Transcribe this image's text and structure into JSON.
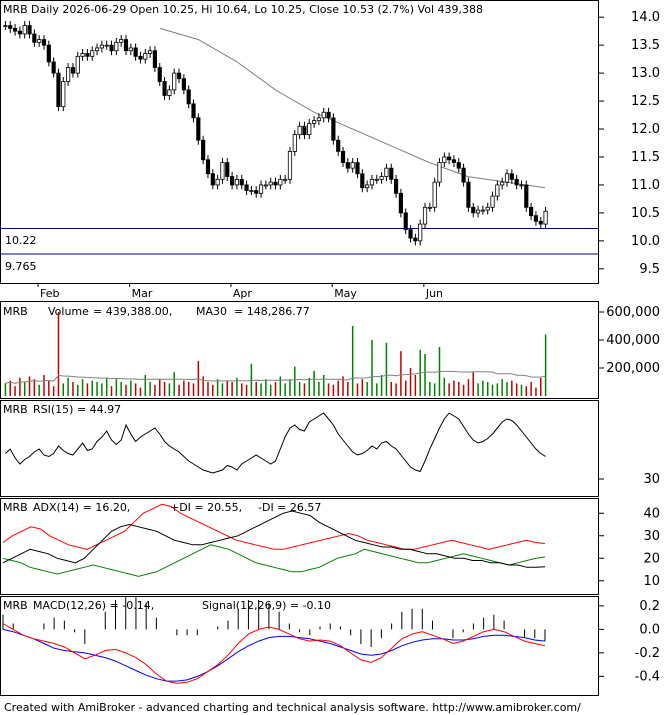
{
  "header": {
    "symbol": "MRB",
    "info": "Daily 2026-06-29 Open 10.25, Hi 10.64, Lo 10.25, Close 10.53 (2.7%) Vol 439,388"
  },
  "price_levels": [
    "10.22",
    "9.765"
  ],
  "months": [
    "Feb",
    "Mar",
    "Apr",
    "May",
    "Jun"
  ],
  "panes": {
    "price": {
      "y_ticks": [
        "14.0",
        "13.5",
        "13.0",
        "12.5",
        "12.0",
        "11.5",
        "11.0",
        "10.5",
        "10.0",
        "9.5"
      ]
    },
    "volume": {
      "symbol": "MRB",
      "label": "Volume",
      "value": "= 439,388.00,",
      "ma_label": "MA30",
      "ma_value": "= 148,286.77",
      "y_ticks": [
        "600,000",
        "400,000",
        "200,000"
      ]
    },
    "rsi": {
      "symbol": "MRB",
      "label": "RSI(15) = 44.97",
      "y_ticks": [
        "30"
      ]
    },
    "adx": {
      "symbol": "MRB",
      "label": "ADX(14) = 16.20,",
      "pdi": "+DI = 20.55,",
      "mdi": "-DI = 26.57",
      "y_ticks": [
        "40",
        "30",
        "20",
        "10"
      ]
    },
    "macd": {
      "symbol": "MRB",
      "label": "MACD(12,26) = -0.14,",
      "signal": "Signal(12,26,9) = -0.10",
      "y_ticks": [
        "0.2",
        "0.0",
        "-0.2",
        "-0.4"
      ]
    }
  },
  "footer": "Created with AmiBroker - advanced charting and technical analysis software. http://www.amibroker.com/",
  "colors": {
    "up": "#ffffff",
    "down": "#000000",
    "ma": "#808080",
    "vol_up": "#008000",
    "vol_down": "#c00000",
    "vol_ma": "#808080",
    "pdi": "#008000",
    "mdi": "#ff0000",
    "adx": "#000000",
    "macd": "#ff0000",
    "signal": "#0000ff",
    "hist": "#000000",
    "level_line": "#000080"
  },
  "chart_data": {
    "type": "line",
    "title": "MRB Daily",
    "price_ylim": [
      9.3,
      14.2
    ],
    "close": [
      13.85,
      13.8,
      13.75,
      13.7,
      13.85,
      13.7,
      13.55,
      13.6,
      13.5,
      13.2,
      13.0,
      12.4,
      12.85,
      13.1,
      13.0,
      13.3,
      13.35,
      13.3,
      13.4,
      13.45,
      13.5,
      13.5,
      13.4,
      13.55,
      13.6,
      13.4,
      13.45,
      13.3,
      13.25,
      13.35,
      13.4,
      13.1,
      12.85,
      12.6,
      12.7,
      13.0,
      12.9,
      12.7,
      12.45,
      12.2,
      11.8,
      11.45,
      11.2,
      11.0,
      11.1,
      11.4,
      11.15,
      11.0,
      11.1,
      11.0,
      10.9,
      10.9,
      10.85,
      11.0,
      11.0,
      11.05,
      11.0,
      11.1,
      11.1,
      11.6,
      11.9,
      12.05,
      11.9,
      12.1,
      12.15,
      12.2,
      12.3,
      12.2,
      11.8,
      11.6,
      11.4,
      11.3,
      11.4,
      11.2,
      10.95,
      11.0,
      11.1,
      11.1,
      11.15,
      11.3,
      11.1,
      10.85,
      10.5,
      10.2,
      10.05,
      10.0,
      10.3,
      10.6,
      10.6,
      11.05,
      11.4,
      11.5,
      11.45,
      11.4,
      11.3,
      11.05,
      10.6,
      10.5,
      10.55,
      10.55,
      10.6,
      10.8,
      11.0,
      11.05,
      11.2,
      11.1,
      11.0,
      11.0,
      10.6,
      10.45,
      10.35,
      10.3,
      10.53
    ],
    "ma_line": [
      13.8,
      13.6,
      13.2,
      12.7,
      12.3,
      12.0,
      11.7,
      11.4,
      11.15,
      11.05,
      10.95
    ],
    "volume": [
      90000,
      110000,
      70000,
      130000,
      100000,
      140000,
      120000,
      80000,
      150000,
      110000,
      70000,
      600000,
      90000,
      130000,
      100000,
      80000,
      120000,
      90000,
      110000,
      100000,
      90000,
      130000,
      70000,
      120000,
      100000,
      80000,
      110000,
      90000,
      60000,
      150000,
      100000,
      80000,
      120000,
      100000,
      90000,
      170000,
      80000,
      110000,
      100000,
      90000,
      250000,
      140000,
      100000,
      80000,
      120000,
      90000,
      110000,
      100000,
      130000,
      90000,
      80000,
      230000,
      100000,
      90000,
      120000,
      80000,
      100000,
      140000,
      90000,
      120000,
      210000,
      100000,
      90000,
      130000,
      180000,
      100000,
      150000,
      90000,
      80000,
      110000,
      140000,
      100000,
      500000,
      90000,
      120000,
      100000,
      400000,
      90000,
      150000,
      380000,
      100000,
      90000,
      320000,
      110000,
      200000,
      150000,
      330000,
      300000,
      100000,
      90000,
      350000,
      130000,
      90000,
      110000,
      100000,
      80000,
      120000,
      170000,
      90000,
      110000,
      100000,
      80000,
      90000,
      120000,
      100000,
      110000,
      90000,
      80000,
      70000,
      100000,
      60000,
      130000,
      439388
    ],
    "volume_ylim": [
      0,
      650000
    ],
    "rsi": [
      47,
      50,
      44,
      40,
      43,
      45,
      48,
      50,
      46,
      45,
      47,
      52,
      49,
      47,
      46,
      50,
      54,
      49,
      50,
      55,
      58,
      62,
      56,
      53,
      56,
      66,
      60,
      55,
      58,
      60,
      62,
      64,
      60,
      55,
      52,
      50,
      48,
      45,
      42,
      40,
      38,
      36,
      35,
      34,
      35,
      36,
      39,
      38,
      36,
      40,
      42,
      44,
      46,
      44,
      42,
      40,
      42,
      50,
      58,
      64,
      66,
      63,
      62,
      68,
      70,
      72,
      74,
      70,
      66,
      60,
      56,
      52,
      48,
      46,
      47,
      49,
      52,
      50,
      54,
      55,
      52,
      50,
      46,
      42,
      38,
      36,
      35,
      42,
      50,
      57,
      64,
      70,
      74,
      72,
      70,
      65,
      60,
      56,
      54,
      55,
      57,
      60,
      64,
      68,
      70,
      69,
      66,
      62,
      58,
      54,
      50,
      47,
      44.97
    ],
    "rsi_ylim": [
      20,
      80
    ],
    "adx": [
      18,
      20,
      22,
      24,
      23,
      22,
      20,
      19,
      18,
      20,
      24,
      28,
      32,
      34,
      35,
      34,
      33,
      32,
      30,
      28,
      27,
      26,
      26,
      27,
      28,
      29,
      30,
      32,
      34,
      36,
      38,
      40,
      41,
      40,
      39,
      36,
      34,
      32,
      30,
      28,
      27,
      26,
      25,
      25,
      24,
      24,
      23,
      22,
      22,
      21,
      20,
      20,
      19,
      19,
      18,
      18,
      17,
      17,
      16,
      16,
      16.2
    ],
    "plus_di": [
      20,
      19,
      18,
      16,
      15,
      14,
      13,
      14,
      15,
      16,
      17,
      16,
      15,
      14,
      13,
      12,
      13,
      14,
      16,
      18,
      20,
      22,
      24,
      26,
      25,
      24,
      22,
      20,
      18,
      17,
      16,
      15,
      14,
      14,
      15,
      16,
      18,
      20,
      21,
      22,
      24,
      23,
      22,
      21,
      20,
      19,
      18,
      18,
      19,
      20,
      21,
      22,
      21,
      20,
      19,
      18,
      17,
      18,
      19,
      20,
      20.55
    ],
    "minus_di": [
      27,
      30,
      32,
      34,
      33,
      30,
      28,
      26,
      25,
      24,
      26,
      28,
      30,
      32,
      36,
      40,
      42,
      44,
      43,
      40,
      38,
      36,
      34,
      32,
      30,
      28,
      27,
      26,
      25,
      24,
      24,
      25,
      26,
      27,
      28,
      29,
      30,
      31,
      30,
      28,
      27,
      26,
      25,
      24,
      24,
      25,
      26,
      27,
      28,
      27,
      26,
      25,
      24,
      25,
      26,
      27,
      28,
      27,
      26.57
    ],
    "adx_ylim": [
      5,
      45
    ],
    "macd": [
      0.05,
      0.0,
      -0.05,
      -0.08,
      -0.1,
      -0.12,
      -0.15,
      -0.2,
      -0.25,
      -0.22,
      -0.18,
      -0.17,
      -0.2,
      -0.24,
      -0.3,
      -0.38,
      -0.44,
      -0.46,
      -0.45,
      -0.42,
      -0.36,
      -0.3,
      -0.22,
      -0.12,
      -0.04,
      0.0,
      0.02,
      0.0,
      -0.04,
      -0.08,
      -0.1,
      -0.09,
      -0.1,
      -0.14,
      -0.2,
      -0.26,
      -0.28,
      -0.24,
      -0.16,
      -0.08,
      -0.04,
      -0.02,
      -0.05,
      -0.08,
      -0.12,
      -0.1,
      -0.06,
      -0.02,
      0.0,
      -0.02,
      -0.06,
      -0.1,
      -0.12,
      -0.14
    ],
    "signal": [
      0.0,
      -0.02,
      -0.05,
      -0.08,
      -0.12,
      -0.16,
      -0.18,
      -0.19,
      -0.2,
      -0.22,
      -0.24,
      -0.27,
      -0.31,
      -0.35,
      -0.39,
      -0.42,
      -0.44,
      -0.44,
      -0.43,
      -0.4,
      -0.36,
      -0.31,
      -0.25,
      -0.19,
      -0.14,
      -0.1,
      -0.07,
      -0.06,
      -0.06,
      -0.07,
      -0.08,
      -0.1,
      -0.12,
      -0.15,
      -0.18,
      -0.21,
      -0.22,
      -0.21,
      -0.18,
      -0.14,
      -0.11,
      -0.09,
      -0.08,
      -0.08,
      -0.09,
      -0.09,
      -0.08,
      -0.06,
      -0.05,
      -0.05,
      -0.06,
      -0.07,
      -0.09,
      -0.1
    ],
    "macd_ylim": [
      -0.55,
      0.25
    ],
    "month_label_index": [
      8,
      27,
      48,
      69,
      88
    ]
  }
}
